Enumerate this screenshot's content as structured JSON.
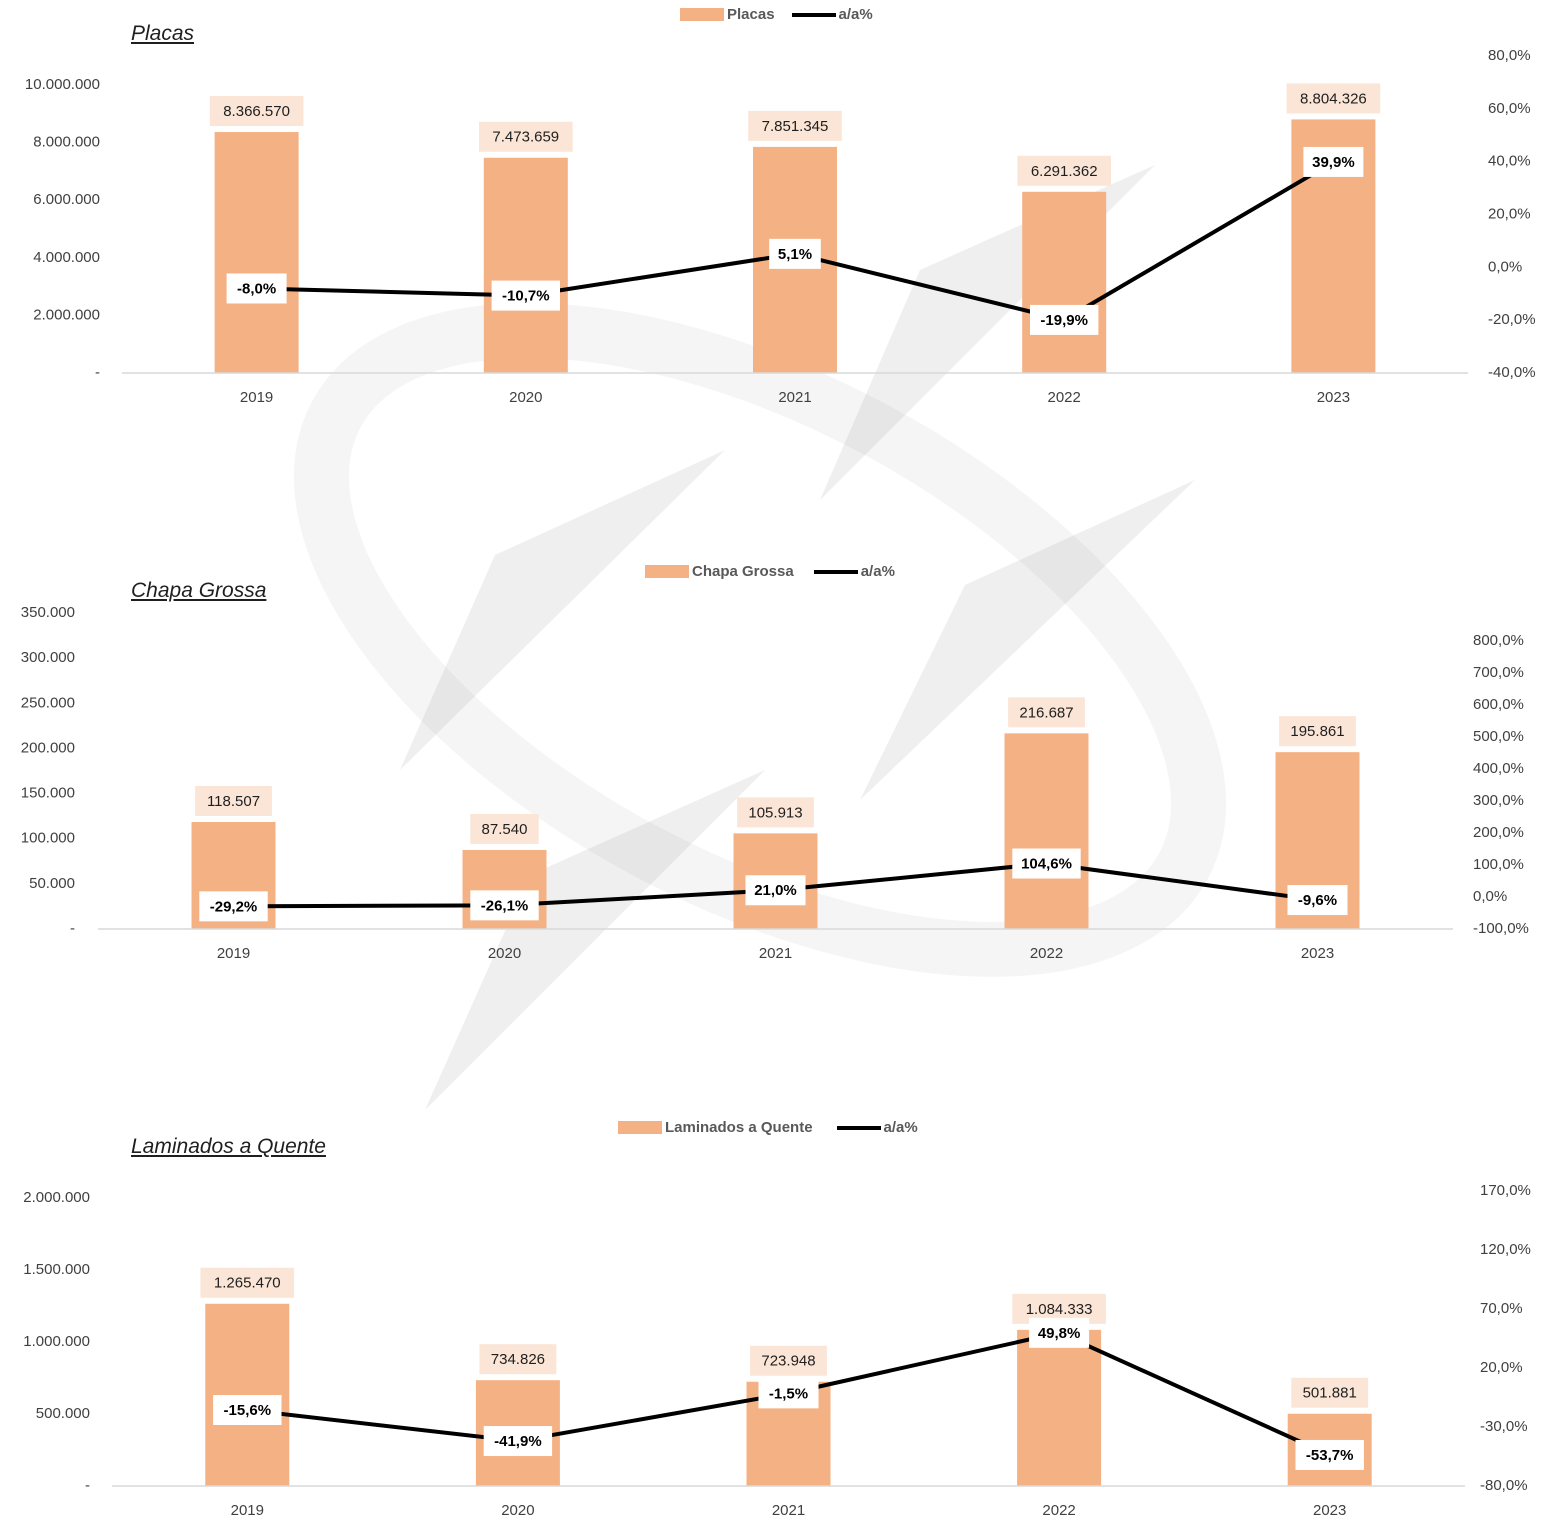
{
  "colors": {
    "bar": "#f4b183",
    "bar_label_bg": "#fbe5d6",
    "line": "#000000",
    "axis": "#d9d9d9",
    "text": "#404040"
  },
  "chart_data": [
    {
      "type": "bar",
      "title": "Placas",
      "categories": [
        "2019",
        "2020",
        "2021",
        "2022",
        "2023"
      ],
      "series": [
        {
          "name": "Placas",
          "type": "bar",
          "axis": "left",
          "values": [
            8366570,
            7473659,
            7851345,
            6291362,
            8804326
          ],
          "labels": [
            "8.366.570",
            "7.473.659",
            "7.851.345",
            "6.291.362",
            "8.804.326"
          ]
        },
        {
          "name": "a/a%",
          "type": "line",
          "axis": "right",
          "values": [
            -8.0,
            -10.7,
            5.1,
            -19.9,
            39.9
          ],
          "labels": [
            "-8,0%",
            "-10,7%",
            "5,1%",
            "-19,9%",
            "39,9%"
          ]
        }
      ],
      "y_left": {
        "min": 0,
        "max": 10000000,
        "ticks": [
          "-",
          "2.000.000",
          "4.000.000",
          "6.000.000",
          "8.000.000",
          "10.000.000"
        ]
      },
      "y_right": {
        "min": -40,
        "max": 80,
        "ticks": [
          "-40,0%",
          "-20,0%",
          "0,0%",
          "20,0%",
          "40,0%",
          "60,0%",
          "80,0%"
        ]
      },
      "legend_position": "top-center",
      "grid": false
    },
    {
      "type": "bar",
      "title": "Chapa Grossa",
      "categories": [
        "2019",
        "2020",
        "2021",
        "2022",
        "2023"
      ],
      "series": [
        {
          "name": "Chapa Grossa",
          "type": "bar",
          "axis": "left",
          "values": [
            118507,
            87540,
            105913,
            216687,
            195861
          ],
          "labels": [
            "118.507",
            "87.540",
            "105.913",
            "216.687",
            "195.861"
          ]
        },
        {
          "name": "a/a%",
          "type": "line",
          "axis": "right",
          "values": [
            -29.2,
            -26.1,
            21.0,
            104.6,
            -9.6
          ],
          "labels": [
            "-29,2%",
            "-26,1%",
            "21,0%",
            "104,6%",
            "-9,6%"
          ]
        }
      ],
      "y_left": {
        "min": 0,
        "max": 350000,
        "ticks": [
          "-",
          "50.000",
          "100.000",
          "150.000",
          "200.000",
          "250.000",
          "300.000",
          "350.000"
        ]
      },
      "y_right": {
        "min": -100,
        "max": 800,
        "ticks": [
          "-100,0%",
          "0,0%",
          "100,0%",
          "200,0%",
          "300,0%",
          "400,0%",
          "500,0%",
          "600,0%",
          "700,0%",
          "800,0%"
        ]
      },
      "legend_position": "top-center",
      "grid": false
    },
    {
      "type": "bar",
      "title": "Laminados a Quente",
      "categories": [
        "2019",
        "2020",
        "2021",
        "2022",
        "2023"
      ],
      "series": [
        {
          "name": "Laminados a Quente",
          "type": "bar",
          "axis": "left",
          "values": [
            1265470,
            734826,
            723948,
            1084333,
            501881
          ],
          "labels": [
            "1.265.470",
            "734.826",
            "723.948",
            "1.084.333",
            "501.881"
          ]
        },
        {
          "name": "a/a%",
          "type": "line",
          "axis": "right",
          "values": [
            -15.6,
            -41.9,
            -1.5,
            49.8,
            -53.7
          ],
          "labels": [
            "-15,6%",
            "-41,9%",
            "-1,5%",
            "49,8%",
            "-53,7%"
          ]
        }
      ],
      "y_left": {
        "min": 0,
        "max": 2000000,
        "ticks": [
          "-",
          "500.000",
          "1.000.000",
          "1.500.000",
          "2.000.000"
        ]
      },
      "y_right": {
        "min": -80,
        "max": 170,
        "ticks": [
          "-80,0%",
          "-30,0%",
          "20,0%",
          "70,0%",
          "120,0%",
          "170,0%"
        ]
      },
      "legend_position": "top-center",
      "grid": false
    }
  ]
}
